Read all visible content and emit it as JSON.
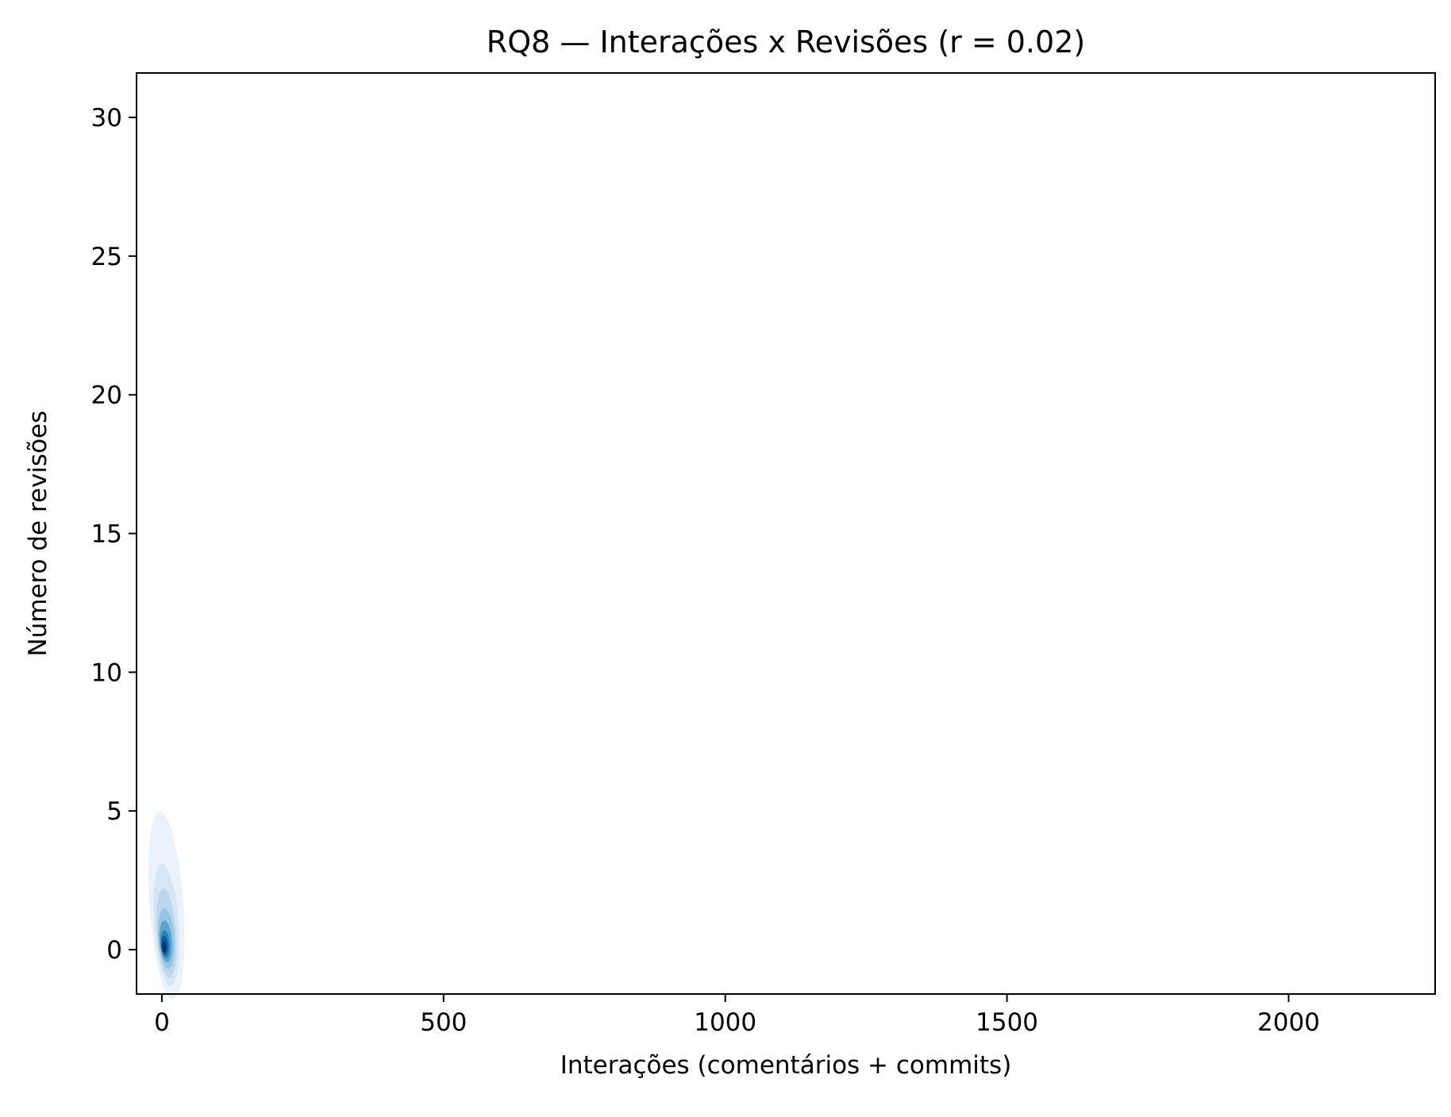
{
  "chart_data": {
    "type": "kde-density",
    "title": "RQ8 — Interações x Revisões (r = 0.02)",
    "xlabel": "Interações (comentários + commits)",
    "ylabel": "Número de revisões",
    "xlim": [
      -45,
      2260
    ],
    "ylim": [
      -1.6,
      31.6
    ],
    "xticks": [
      0,
      500,
      1000,
      1500,
      2000
    ],
    "yticks": [
      0,
      5,
      10,
      15,
      20,
      25,
      30
    ],
    "xtick_labels": [
      "0",
      "500",
      "1000",
      "1500",
      "2000"
    ],
    "ytick_labels": [
      "0",
      "5",
      "10",
      "15",
      "20",
      "25",
      "30"
    ],
    "grid": false,
    "colormap": "Blues",
    "density_levels": [
      {
        "level": 1,
        "color": "#eaf2fb",
        "center": [
          8,
          1.6
        ],
        "half_width": 30,
        "half_height": 3.4
      },
      {
        "level": 2,
        "color": "#d7e6f5",
        "center": [
          8,
          0.9
        ],
        "half_width": 22,
        "half_height": 2.2
      },
      {
        "level": 3,
        "color": "#bcd7eb",
        "center": [
          8,
          0.6
        ],
        "half_width": 17,
        "half_height": 1.6
      },
      {
        "level": 4,
        "color": "#94c4df",
        "center": [
          8,
          0.4
        ],
        "half_width": 14,
        "half_height": 1.1
      },
      {
        "level": 5,
        "color": "#5fa2cf",
        "center": [
          7,
          0.3
        ],
        "half_width": 11,
        "half_height": 0.75
      },
      {
        "level": 6,
        "color": "#2e7ebc",
        "center": [
          6,
          0.2
        ],
        "half_width": 8,
        "half_height": 0.5
      },
      {
        "level": 7,
        "color": "#0d5aa3",
        "center": [
          5,
          0.15
        ],
        "half_width": 6,
        "half_height": 0.35
      },
      {
        "level": 8,
        "color": "#08306b",
        "center": [
          4,
          0.1
        ],
        "half_width": 3.5,
        "half_height": 0.2
      }
    ]
  }
}
